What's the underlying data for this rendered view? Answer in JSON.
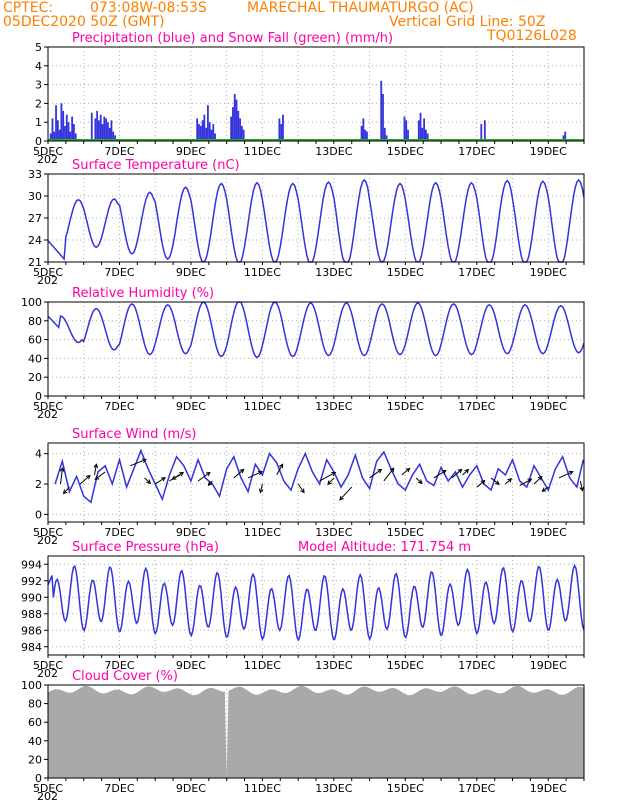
{
  "header": {
    "line1_left": "CPTEC:",
    "line1_coords": "073:08W-08:53S",
    "line1_location": "MARECHAL THAUMATURGO (AC)",
    "line2_left": "05DEC2020 50Z (GMT)",
    "line2_grid": "Vertical Grid Line: 50Z",
    "line2_code": "TQ0126L028"
  },
  "colors": {
    "header": "#ff7f00",
    "title": "#ff00aa",
    "series_blue": "#3333dd",
    "snow_green": "#22aa22",
    "wind_arrow": "#000000",
    "cloud_gray": "#a9a9a9"
  },
  "x_axis": {
    "start_label": "5DEC",
    "tick_labels": [
      "5DEC",
      "7DEC",
      "9DEC",
      "11DEC",
      "13DEC",
      "15DEC",
      "17DEC",
      "19DEC"
    ],
    "days_span": 15,
    "year_fragment": "202"
  },
  "chart_data": [
    {
      "type": "bar",
      "title": "Precipitation (blue) and Snow Fall (green) (mm/h)",
      "ylim": [
        0,
        5
      ],
      "yticks": [
        0,
        1,
        2,
        3,
        4,
        5
      ],
      "grid": true,
      "series": [
        {
          "name": "Precipitation",
          "color": "#3333dd",
          "points": [
            [
              0.05,
              0.4
            ],
            [
              0.1,
              1.2
            ],
            [
              0.15,
              0.5
            ],
            [
              0.2,
              1.9
            ],
            [
              0.25,
              1.1
            ],
            [
              0.3,
              0.6
            ],
            [
              0.35,
              2.0
            ],
            [
              0.4,
              1.6
            ],
            [
              0.45,
              0.8
            ],
            [
              0.5,
              1.4
            ],
            [
              0.55,
              1.0
            ],
            [
              0.6,
              0.5
            ],
            [
              0.65,
              1.3
            ],
            [
              0.7,
              0.9
            ],
            [
              0.75,
              0.4
            ],
            [
              1.2,
              1.5
            ],
            [
              1.3,
              1.2
            ],
            [
              1.35,
              1.6
            ],
            [
              1.4,
              1.1
            ],
            [
              1.45,
              1.4
            ],
            [
              1.5,
              0.9
            ],
            [
              1.55,
              1.3
            ],
            [
              1.6,
              1.2
            ],
            [
              1.65,
              1.0
            ],
            [
              1.7,
              0.7
            ],
            [
              1.75,
              1.1
            ],
            [
              1.8,
              0.5
            ],
            [
              1.85,
              0.3
            ],
            [
              4.15,
              1.2
            ],
            [
              4.2,
              0.9
            ],
            [
              4.25,
              0.8
            ],
            [
              4.3,
              1.1
            ],
            [
              4.35,
              1.4
            ],
            [
              4.4,
              0.7
            ],
            [
              4.45,
              1.9
            ],
            [
              4.5,
              1.0
            ],
            [
              4.55,
              0.6
            ],
            [
              4.6,
              0.9
            ],
            [
              4.65,
              0.4
            ],
            [
              5.1,
              1.3
            ],
            [
              5.15,
              1.8
            ],
            [
              5.2,
              2.5
            ],
            [
              5.25,
              2.2
            ],
            [
              5.3,
              1.6
            ],
            [
              5.35,
              1.2
            ],
            [
              5.4,
              0.8
            ],
            [
              5.45,
              0.6
            ],
            [
              6.45,
              1.2
            ],
            [
              6.5,
              0.9
            ],
            [
              6.55,
              1.4
            ],
            [
              8.75,
              0.8
            ],
            [
              8.8,
              1.2
            ],
            [
              8.85,
              0.6
            ],
            [
              8.9,
              0.5
            ],
            [
              9.3,
              3.2
            ],
            [
              9.35,
              2.5
            ],
            [
              9.4,
              0.7
            ],
            [
              9.45,
              0.3
            ],
            [
              9.95,
              1.3
            ],
            [
              10.0,
              1.1
            ],
            [
              10.05,
              0.6
            ],
            [
              10.35,
              1.1
            ],
            [
              10.4,
              1.5
            ],
            [
              10.45,
              0.7
            ],
            [
              10.5,
              1.2
            ],
            [
              10.55,
              0.6
            ],
            [
              10.6,
              0.4
            ],
            [
              12.1,
              0.9
            ],
            [
              12.2,
              1.1
            ],
            [
              14.4,
              0.3
            ],
            [
              14.45,
              0.5
            ]
          ]
        },
        {
          "name": "Snow Fall",
          "color": "#22aa22",
          "values_all": 0
        }
      ]
    },
    {
      "type": "line",
      "title": "Surface Temperature (nC)",
      "ylim": [
        21,
        33
      ],
      "yticks": [
        21,
        24,
        27,
        30,
        33
      ],
      "grid": true,
      "mean": 26.5,
      "amplitude": 5.3,
      "phase_day": 0.85,
      "amp_by_day": [
        3.2,
        3.3,
        4.2,
        4.9,
        5.4,
        5.5,
        5.4,
        5.6,
        5.9,
        5.4,
        5.5,
        5.5,
        5.8,
        5.7,
        5.9
      ]
    },
    {
      "type": "line",
      "title": "Relative Humidity (%)",
      "ylim": [
        0,
        100
      ],
      "yticks": [
        0,
        20,
        40,
        60,
        80,
        100
      ],
      "grid": true,
      "mean": 75,
      "amplitude": 28,
      "amp_by_day": [
        14,
        22,
        27,
        26,
        29,
        30,
        29,
        28,
        28,
        27,
        28,
        27,
        26,
        26,
        25
      ]
    },
    {
      "type": "line",
      "title": "Surface Wind (m/s)",
      "ylim": [
        -0.5,
        4.7
      ],
      "yticks": [
        0,
        2,
        4
      ],
      "grid": true,
      "wind_points": [
        [
          0.2,
          2.0
        ],
        [
          0.4,
          3.5
        ],
        [
          0.6,
          1.5
        ],
        [
          0.8,
          2.5
        ],
        [
          1.0,
          1.2
        ],
        [
          1.2,
          0.8
        ],
        [
          1.4,
          2.8
        ],
        [
          1.6,
          3.2
        ],
        [
          1.8,
          2.0
        ],
        [
          2.0,
          3.6
        ],
        [
          2.2,
          1.8
        ],
        [
          2.4,
          3.0
        ],
        [
          2.6,
          4.2
        ],
        [
          2.8,
          3.0
        ],
        [
          3.0,
          2.0
        ],
        [
          3.2,
          1.0
        ],
        [
          3.4,
          2.6
        ],
        [
          3.6,
          3.8
        ],
        [
          3.8,
          3.2
        ],
        [
          4.0,
          2.2
        ],
        [
          4.2,
          3.6
        ],
        [
          4.4,
          2.4
        ],
        [
          4.6,
          2.0
        ],
        [
          4.8,
          1.2
        ],
        [
          5.0,
          3.0
        ],
        [
          5.2,
          3.8
        ],
        [
          5.4,
          2.4
        ],
        [
          5.6,
          1.5
        ],
        [
          5.8,
          3.3
        ],
        [
          6.0,
          2.6
        ],
        [
          6.2,
          4.0
        ],
        [
          6.4,
          3.4
        ],
        [
          6.6,
          2.2
        ],
        [
          6.8,
          1.6
        ],
        [
          7.0,
          3.0
        ],
        [
          7.2,
          4.0
        ],
        [
          7.4,
          2.8
        ],
        [
          7.6,
          2.0
        ],
        [
          7.8,
          3.6
        ],
        [
          8.0,
          2.8
        ],
        [
          8.2,
          1.8
        ],
        [
          8.4,
          2.6
        ],
        [
          8.6,
          3.9
        ],
        [
          8.8,
          2.4
        ],
        [
          9.0,
          1.7
        ],
        [
          9.2,
          3.5
        ],
        [
          9.4,
          4.1
        ],
        [
          9.6,
          3.0
        ],
        [
          9.8,
          2.0
        ],
        [
          10.0,
          1.6
        ],
        [
          10.2,
          2.6
        ],
        [
          10.4,
          3.3
        ],
        [
          10.6,
          2.2
        ],
        [
          10.8,
          1.9
        ],
        [
          11.0,
          3.1
        ],
        [
          11.2,
          2.2
        ],
        [
          11.4,
          2.8
        ],
        [
          11.6,
          1.8
        ],
        [
          11.8,
          2.6
        ],
        [
          12.0,
          3.2
        ],
        [
          12.2,
          2.0
        ],
        [
          12.4,
          1.6
        ],
        [
          12.6,
          3.0
        ],
        [
          12.8,
          2.6
        ],
        [
          13.0,
          3.6
        ],
        [
          13.2,
          2.2
        ],
        [
          13.4,
          1.8
        ],
        [
          13.6,
          3.2
        ],
        [
          13.8,
          2.4
        ],
        [
          14.0,
          1.6
        ],
        [
          14.2,
          3.0
        ],
        [
          14.4,
          3.8
        ],
        [
          14.6,
          2.4
        ],
        [
          14.8,
          1.8
        ],
        [
          14.98,
          3.6
        ]
      ],
      "arrows": [
        [
          0.35,
          2.0,
          0.1,
          1.5
        ],
        [
          0.6,
          1.8,
          -0.3,
          -0.6
        ],
        [
          0.9,
          2.0,
          0.5,
          0.8
        ],
        [
          1.3,
          2.6,
          0.1,
          1.0
        ],
        [
          1.6,
          2.8,
          -0.5,
          -0.7
        ],
        [
          2.3,
          3.2,
          0.8,
          0.6
        ],
        [
          2.7,
          2.4,
          0.3,
          -0.5
        ],
        [
          3.0,
          2.0,
          0.5,
          0.6
        ],
        [
          3.4,
          2.2,
          0.7,
          0.8
        ],
        [
          3.7,
          2.6,
          -0.4,
          -0.4
        ],
        [
          4.2,
          2.2,
          0.6,
          0.8
        ],
        [
          4.6,
          2.2,
          -0.2,
          -0.4
        ],
        [
          5.2,
          2.4,
          0.5,
          0.8
        ],
        [
          5.6,
          2.4,
          0.7,
          0.6
        ],
        [
          6.0,
          2.0,
          -0.1,
          -0.8
        ],
        [
          6.4,
          2.6,
          0.3,
          1.0
        ],
        [
          7.0,
          2.0,
          0.3,
          -0.8
        ],
        [
          7.6,
          2.2,
          0.8,
          0.8
        ],
        [
          8.0,
          2.4,
          -0.3,
          -0.6
        ],
        [
          8.5,
          1.8,
          -0.6,
          -1.2
        ],
        [
          9.0,
          2.4,
          0.6,
          0.8
        ],
        [
          9.4,
          2.2,
          0.5,
          1.2
        ],
        [
          9.9,
          2.6,
          0.4,
          0.6
        ],
        [
          10.3,
          2.4,
          0.3,
          -0.5
        ],
        [
          10.8,
          2.4,
          0.6,
          0.7
        ],
        [
          11.3,
          2.4,
          0.5,
          0.8
        ],
        [
          11.6,
          2.6,
          0.3,
          0.5
        ],
        [
          12.0,
          1.8,
          0.4,
          0.6
        ],
        [
          12.4,
          2.4,
          0.4,
          -0.6
        ],
        [
          12.8,
          2.0,
          0.3,
          0.5
        ],
        [
          13.2,
          1.9,
          0.6,
          0.6
        ],
        [
          13.6,
          2.0,
          0.4,
          0.7
        ],
        [
          14.0,
          1.8,
          -0.3,
          -0.4
        ],
        [
          14.3,
          2.4,
          0.7,
          0.6
        ],
        [
          14.9,
          2.2,
          0.1,
          -0.9
        ]
      ]
    },
    {
      "type": "line",
      "title": "Surface Pressure (hPa)",
      "annotation": "Model Altitude: 171.754 m",
      "ylim": [
        983,
        995
      ],
      "yticks": [
        984,
        986,
        988,
        990,
        992,
        994
      ],
      "grid": true,
      "mean": 989.2,
      "amplitude": 3.2
    },
    {
      "type": "area",
      "title": "Cloud Cover (%)",
      "ylim": [
        0,
        100
      ],
      "yticks": [
        0,
        20,
        40,
        60,
        80,
        100
      ],
      "grid": true,
      "typical_value": 94,
      "notch_day": 5.0,
      "notch_value": 2
    }
  ]
}
